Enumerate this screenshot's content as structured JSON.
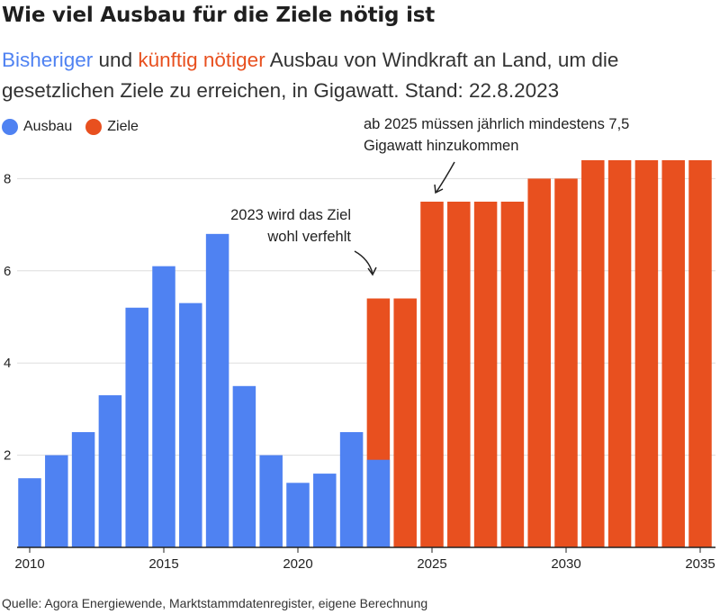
{
  "title": "Wie viel Ausbau für die Ziele nötig ist",
  "subtitle": {
    "part1": "Bisheriger",
    "part2": " und ",
    "part3": "künftig nötiger",
    "part4": " Ausbau von Windkraft an Land, um die gesetzlichen Ziele zu erreichen, in Gigawatt. Stand: 22.8.2023"
  },
  "legend": [
    {
      "label": "Ausbau",
      "color": "#4f82f2"
    },
    {
      "label": "Ziele",
      "color": "#e8501f"
    }
  ],
  "annotations": {
    "a2023_line1": "2023 wird das Ziel",
    "a2023_line2": "wohl verfehlt",
    "a2025_line1": "ab 2025 müssen jährlich mindestens 7,5",
    "a2025_line2": "Gigawatt hinzukommen"
  },
  "source": "Quelle: Agora Energiewende, Marktstammdatenregister, eigene Berechnung",
  "chart_data": {
    "type": "bar",
    "x": [
      2010,
      2011,
      2012,
      2013,
      2014,
      2015,
      2016,
      2017,
      2018,
      2019,
      2020,
      2021,
      2022,
      2023,
      2024,
      2025,
      2026,
      2027,
      2028,
      2029,
      2030,
      2031,
      2032,
      2033,
      2034,
      2035
    ],
    "series": [
      {
        "name": "Ausbau",
        "color": "#4f82f2",
        "values": [
          1.5,
          2.0,
          2.5,
          3.3,
          5.2,
          6.1,
          5.3,
          6.8,
          3.5,
          2.0,
          1.4,
          1.6,
          2.5,
          1.9,
          null,
          null,
          null,
          null,
          null,
          null,
          null,
          null,
          null,
          null,
          null,
          null
        ]
      },
      {
        "name": "Ziele",
        "color": "#e8501f",
        "values": [
          null,
          null,
          null,
          null,
          null,
          null,
          null,
          null,
          null,
          null,
          null,
          null,
          null,
          5.4,
          5.4,
          7.5,
          7.5,
          7.5,
          7.5,
          8.0,
          8.0,
          8.4,
          8.4,
          8.4,
          8.4,
          8.4
        ]
      }
    ],
    "yticks": [
      2,
      4,
      6,
      8
    ],
    "xticks": [
      2010,
      2015,
      2020,
      2025,
      2030,
      2035
    ],
    "ylim": [
      0,
      8.4
    ],
    "grid": true
  }
}
